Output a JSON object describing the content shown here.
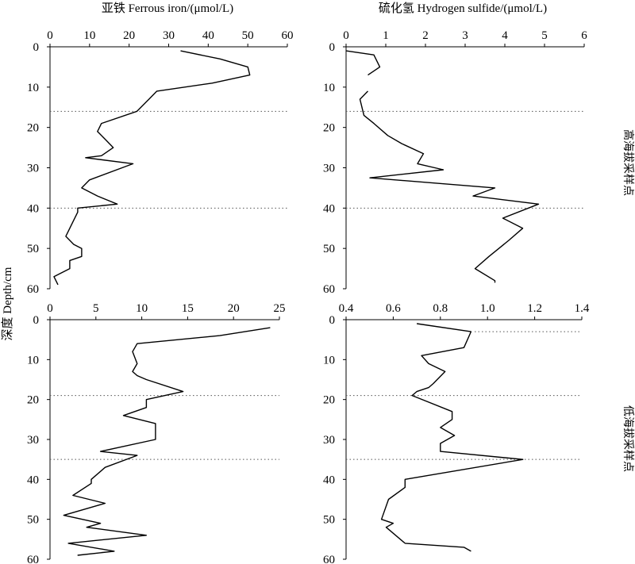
{
  "figure": {
    "ylabel": "深度 Depth/cm",
    "top_title_left": "亚铁 Ferrous iron/(μmol/L)",
    "top_title_right": "硫化氢 Hydrogen sulfide/(μmol/L)",
    "row_label_top": "高海拔采样点",
    "row_label_bottom": "低海拔采样点"
  },
  "chart_data": [
    {
      "type": "line",
      "panel": "top-left",
      "title": "亚铁 Ferrous iron/(μmol/L)",
      "xlim": [
        0,
        60
      ],
      "xticks": [
        0,
        10,
        20,
        30,
        40,
        50,
        60
      ],
      "ylim": [
        0,
        60
      ],
      "yticks": [
        0,
        10,
        20,
        30,
        40,
        50,
        60
      ],
      "y_inverted": true,
      "x_axis_position": "top",
      "reference_depths": [
        16,
        40
      ],
      "series": [
        {
          "x": [
            33,
            43,
            50,
            50.5,
            41,
            27,
            25,
            22,
            13,
            12,
            14,
            16,
            13,
            9,
            21,
            10,
            8,
            12,
            17,
            7,
            7,
            6,
            4,
            6,
            8,
            8,
            5,
            5,
            1,
            2
          ],
          "y": [
            1,
            3,
            5,
            7,
            9,
            11,
            13,
            16,
            19,
            21,
            23,
            25,
            27,
            27.5,
            29,
            33,
            35,
            37,
            39,
            40,
            41,
            43,
            47,
            49,
            50,
            52,
            53,
            55,
            57,
            59
          ]
        }
      ]
    },
    {
      "type": "line",
      "panel": "top-right",
      "title": "硫化氢 Hydrogen sulfide/(μmol/L)",
      "xlim": [
        0,
        6
      ],
      "xticks": [
        0,
        1,
        2,
        3,
        4,
        5,
        6
      ],
      "ylim": [
        0,
        60
      ],
      "yticks": [
        0,
        10,
        20,
        30,
        40,
        50,
        60
      ],
      "y_inverted": true,
      "x_axis_position": "top",
      "reference_depths": [
        16,
        40
      ],
      "segments": [
        {
          "x": [
            0.0,
            0.7,
            0.85,
            0.55
          ],
          "y": [
            1,
            2,
            5,
            7
          ]
        },
        {
          "x": [
            0.55,
            0.35,
            0.45,
            0.7,
            1.05,
            1.4,
            1.95,
            1.8,
            2.45,
            0.6,
            3.75,
            3.2,
            4.85,
            3.95,
            4.45,
            4.1,
            3.85,
            3.6,
            3.25,
            3.75,
            3.75
          ],
          "y": [
            11,
            13,
            17,
            19,
            22,
            24,
            26.5,
            29,
            30.5,
            32.5,
            35,
            37,
            39,
            42.5,
            45,
            48,
            50,
            52,
            55,
            58,
            58.5
          ]
        }
      ]
    },
    {
      "type": "line",
      "panel": "bottom-left",
      "xlim": [
        0,
        25
      ],
      "xticks": [
        0,
        5,
        10,
        15,
        20,
        25
      ],
      "ylim": [
        0,
        60
      ],
      "yticks": [
        0,
        10,
        20,
        30,
        40,
        50,
        60
      ],
      "y_inverted": true,
      "x_axis_position": "top",
      "reference_depths": [
        19,
        35
      ],
      "series": [
        {
          "x": [
            24,
            18.5,
            9.5,
            9,
            9.5,
            9,
            9.5,
            10.5,
            14.5,
            10.5,
            10.5,
            8,
            11.5,
            11.5,
            11.5,
            5.5,
            9.5,
            6,
            4.5,
            4.5,
            2.5,
            6,
            1.5,
            5.5,
            4,
            10.5,
            2,
            7,
            3
          ],
          "y": [
            2,
            4,
            6,
            8,
            11,
            13,
            14,
            15,
            18,
            20,
            22,
            24,
            26,
            28,
            30,
            33,
            34,
            37,
            40,
            41,
            44,
            46,
            49,
            51,
            52,
            54,
            56,
            58,
            59
          ]
        }
      ]
    },
    {
      "type": "line",
      "panel": "bottom-right",
      "xlim": [
        0.4,
        1.4
      ],
      "xticks": [
        0.4,
        0.6,
        0.8,
        1.0,
        1.2,
        1.4
      ],
      "ylim": [
        0,
        60
      ],
      "yticks": [
        0,
        10,
        20,
        30,
        40,
        50,
        60
      ],
      "y_inverted": true,
      "x_axis_position": "top",
      "reference_depths": [
        3,
        19,
        35
      ],
      "series": [
        {
          "x": [
            0.7,
            0.93,
            0.9,
            0.72,
            0.75,
            0.82,
            0.77,
            0.75,
            0.7,
            0.68,
            0.85,
            0.85,
            0.8,
            0.86,
            0.8,
            0.8,
            1.15,
            0.65,
            0.65,
            0.58,
            0.55,
            0.6,
            0.57,
            0.65,
            0.9,
            0.93
          ],
          "y": [
            1,
            3,
            7,
            9,
            11,
            13,
            16,
            17,
            18,
            19,
            23,
            25,
            27,
            29,
            31,
            33,
            35,
            40,
            42,
            45,
            50,
            51,
            52,
            56,
            57,
            58
          ]
        }
      ]
    }
  ]
}
